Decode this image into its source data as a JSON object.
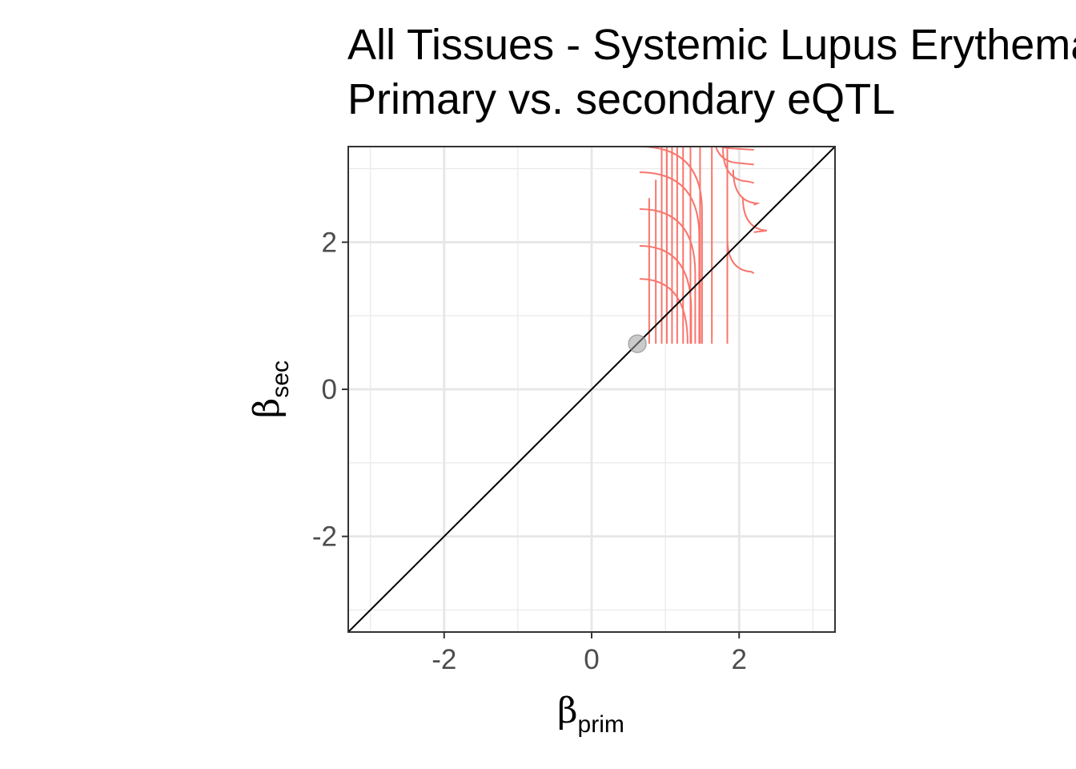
{
  "chart_data": {
    "type": "scatter",
    "title_lines": [
      "All Tissues - Systemic Lupus Erythematosus",
      "Primary vs. secondary eQTL"
    ],
    "xlabel_main": "β",
    "xlabel_sub": "prim",
    "ylabel_main": "β",
    "ylabel_sub": "sec",
    "xlim": [
      -3.3,
      3.3
    ],
    "ylim": [
      -3.3,
      3.3
    ],
    "major_ticks": [
      -2,
      0,
      2
    ],
    "tick_labels": [
      "-2",
      "0",
      "2"
    ],
    "minor_ticks": [
      -3,
      -1,
      1,
      3
    ],
    "grid": true,
    "identity_line": true,
    "point": {
      "x": 0.62,
      "y": 0.62
    },
    "contour_color": "#f8766d",
    "contour_vertical": [
      {
        "x": 0.78,
        "y_top": 2.6
      },
      {
        "x": 0.87,
        "y_top": 2.85
      },
      {
        "x": 0.95,
        "y_top": 3.3
      },
      {
        "x": 1.02,
        "y_top": 3.3
      },
      {
        "x": 1.09,
        "y_top": 3.3
      },
      {
        "x": 1.16,
        "y_top": 3.3
      },
      {
        "x": 1.24,
        "y_top": 3.3
      },
      {
        "x": 1.34,
        "y_top": 3.3
      },
      {
        "x": 1.47,
        "y_top": 3.3
      },
      {
        "x": 1.63,
        "y_top": 3.3
      },
      {
        "x": 1.84,
        "y_top": 3.3
      }
    ],
    "contour_left_curves": [
      {
        "x_end": 0.65,
        "y_end": 1.5
      },
      {
        "x_end": 0.65,
        "y_end": 1.95
      },
      {
        "x_end": 0.65,
        "y_end": 2.45
      },
      {
        "x_end": 0.65,
        "y_end": 2.95
      },
      {
        "x_end": 0.65,
        "y_end": 3.3
      }
    ],
    "contour_right_curves": [
      {
        "x_start": 1.53,
        "y_level": 3.3
      },
      {
        "x_start": 1.65,
        "y_level": 3.1
      },
      {
        "x_start": 1.78,
        "y_level": 2.85
      },
      {
        "x_start": 1.92,
        "y_level": 2.55
      },
      {
        "x_start": 2.05,
        "y_level": 2.18
      },
      {
        "x_start": 1.84,
        "y_level": 1.62
      }
    ]
  }
}
